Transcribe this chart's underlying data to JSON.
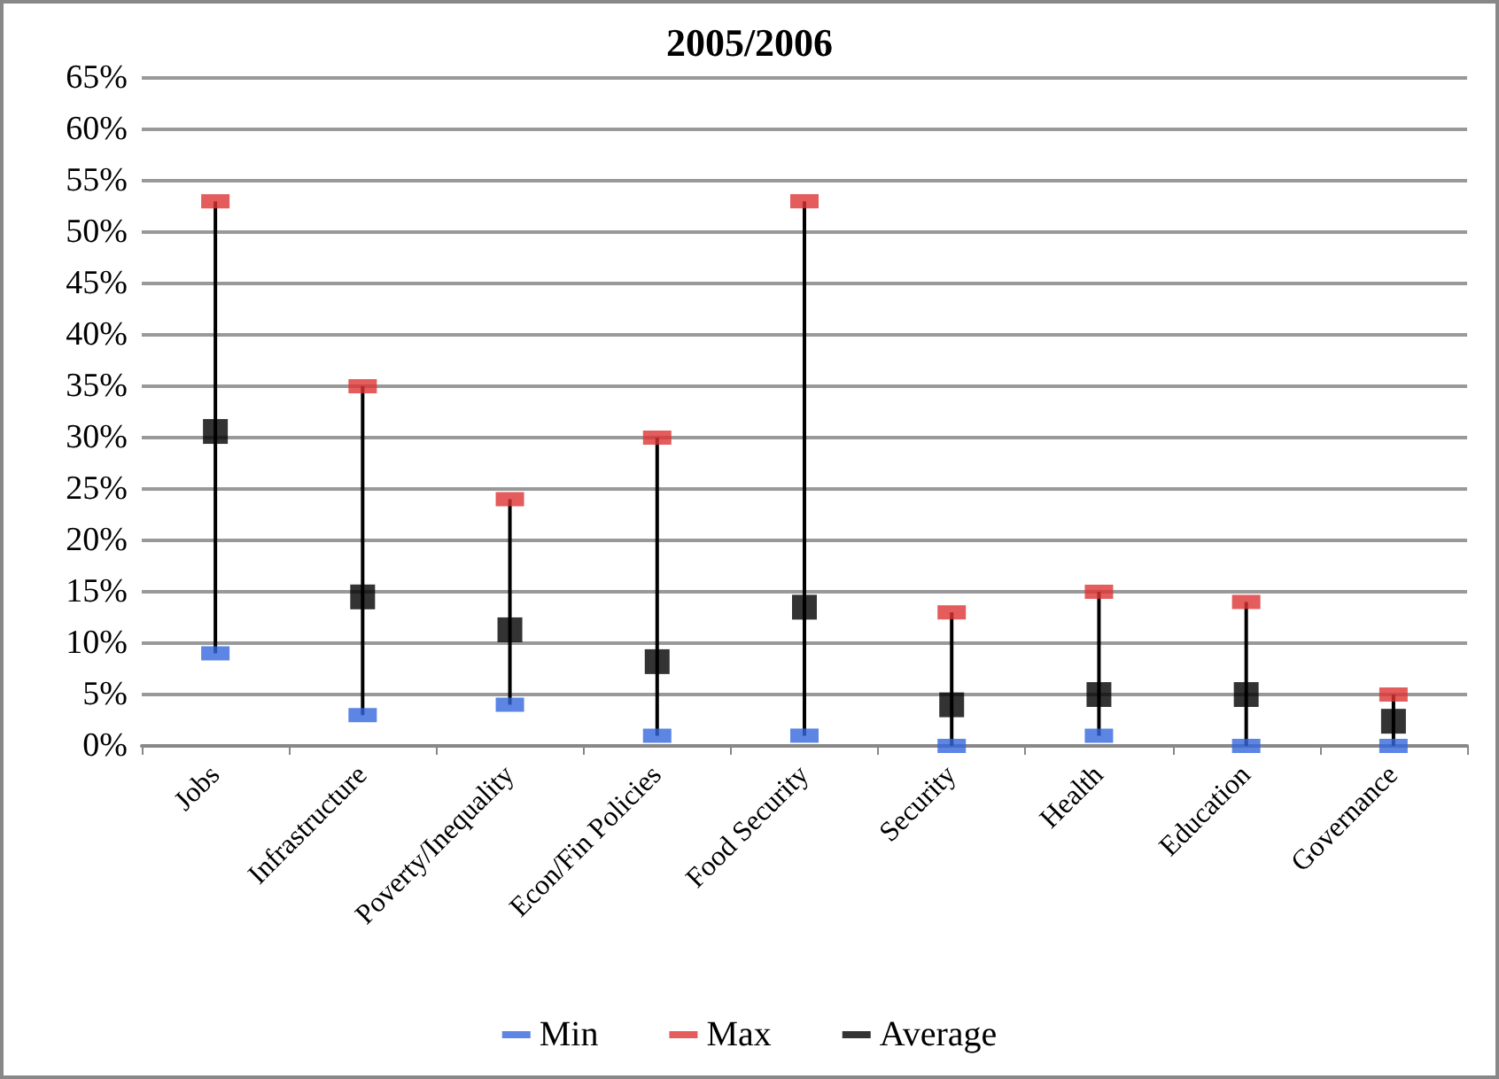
{
  "chart_data": {
    "type": "scatter",
    "title": "2005/2006",
    "categories": [
      "Jobs",
      "Infrastructure",
      "Poverty/Inequality",
      "Econ/Fin Policies",
      "Food Security",
      "Security",
      "Health",
      "Education",
      "Governance"
    ],
    "series": [
      {
        "name": "Min",
        "color": "#3366dd",
        "values": [
          9,
          3,
          4,
          1,
          1,
          0,
          1,
          0,
          0
        ]
      },
      {
        "name": "Max",
        "color": "#dd3333",
        "values": [
          53,
          35,
          24,
          30,
          53,
          13,
          15,
          14,
          5
        ]
      },
      {
        "name": "Average",
        "color": "#000000",
        "marker": "square",
        "values": [
          30.6,
          14.5,
          11.3,
          8.2,
          13.5,
          4,
          5,
          5,
          2.4
        ]
      }
    ],
    "ylim": [
      0,
      65
    ],
    "yticks": [
      {
        "value": 0,
        "label": "0%"
      },
      {
        "value": 5,
        "label": "5%"
      },
      {
        "value": 10,
        "label": "10%"
      },
      {
        "value": 15,
        "label": "15%"
      },
      {
        "value": 20,
        "label": "20%"
      },
      {
        "value": 25,
        "label": "25%"
      },
      {
        "value": 30,
        "label": "30%"
      },
      {
        "value": 35,
        "label": "35%"
      },
      {
        "value": 40,
        "label": "40%"
      },
      {
        "value": 45,
        "label": "45%"
      },
      {
        "value": 50,
        "label": "50%"
      },
      {
        "value": 55,
        "label": "55%"
      },
      {
        "value": 60,
        "label": "60%"
      },
      {
        "value": 65,
        "label": "65%"
      }
    ],
    "grid": "y",
    "legend": "bottom"
  }
}
